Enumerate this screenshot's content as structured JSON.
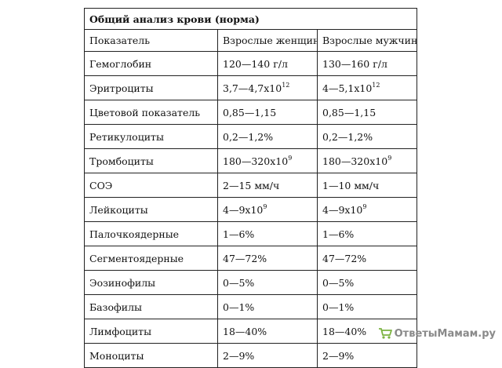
{
  "table": {
    "title": "Общий анализ крови (норма)",
    "headers": [
      "Показатель",
      "Взрослые женщины",
      "Взрослые мужчины"
    ],
    "rows": [
      {
        "name": "Гемоглобин",
        "women": "120—140 г/л",
        "men": "130—160 г/л"
      },
      {
        "name": "Эритроциты",
        "women": "3,7—4,7х10",
        "women_sup": "12",
        "men": "4—5,1х10",
        "men_sup": "12"
      },
      {
        "name": "Цветовой показатель",
        "women": "0,85—1,15",
        "men": "0,85—1,15"
      },
      {
        "name": "Ретикулоциты",
        "women": "0,2—1,2%",
        "men": "0,2—1,2%"
      },
      {
        "name": "Тромбоциты",
        "women": "180—320х10",
        "women_sup": "9",
        "men": "180—320х10",
        "men_sup": "9"
      },
      {
        "name": "СОЭ",
        "women": "2—15 мм/ч",
        "men": "1—10 мм/ч"
      },
      {
        "name": "Лейкоциты",
        "women": "4—9х10",
        "women_sup": "9",
        "men": "4—9х10",
        "men_sup": "9"
      },
      {
        "name": "Палочкоядерные",
        "women": "1—6%",
        "men": "1—6%"
      },
      {
        "name": "Сегментоядерные",
        "women": "47—72%",
        "men": "47—72%"
      },
      {
        "name": "Эозинофилы",
        "women": "0—5%",
        "men": "0—5%"
      },
      {
        "name": "Базофилы",
        "women": "0—1%",
        "men": "0—1%"
      },
      {
        "name": "Лимфоциты",
        "women": "18—40%",
        "men": "18—40%"
      },
      {
        "name": "Моноциты",
        "women": "2—9%",
        "men": "2—9%"
      }
    ]
  },
  "watermark": {
    "text": "ОтветыМамам.ру",
    "icon": "shopping-cart-icon",
    "icon_color": "#7cb342"
  }
}
